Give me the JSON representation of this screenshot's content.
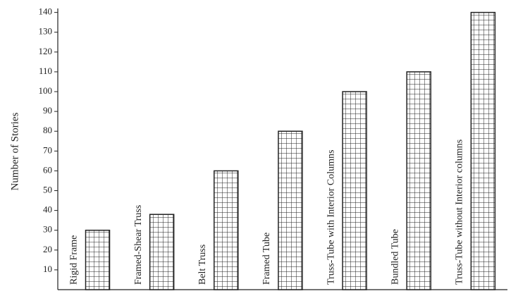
{
  "chart_data": {
    "type": "bar",
    "ylabel": "Number of Stories",
    "categories": [
      "Rigid Frame",
      "Framed-Shear Truss",
      "Belt Truss",
      "Framed Tube",
      "Truss-Tube with Interior Columns",
      "Bundled Tube",
      "Truss-Tube without Interior columns"
    ],
    "values": [
      30,
      38,
      60,
      80,
      100,
      110,
      140
    ],
    "color": "#222222",
    "ylim": [
      0,
      142
    ],
    "yticks": [
      10,
      20,
      30,
      40,
      50,
      60,
      70,
      80,
      90,
      100,
      110,
      120,
      130,
      140
    ]
  }
}
